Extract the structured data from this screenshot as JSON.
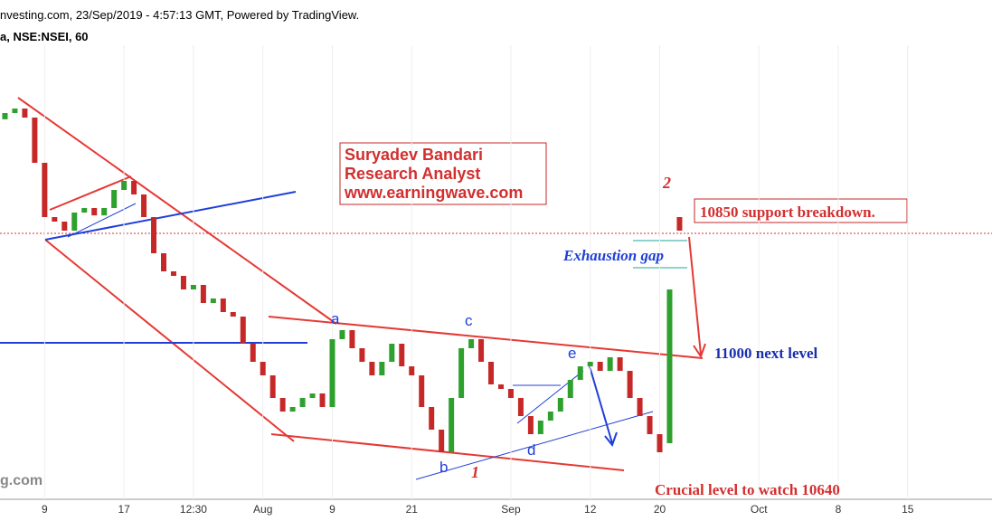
{
  "chart_data": {
    "type": "candlestick",
    "source": "nvesting.com, 23/Sep/2019 - 4:57:13 GMT, Powered by TradingView.",
    "title": "a, NSE:NSEI, 60",
    "watermark": "g.com",
    "categories": [
      null,
      null,
      null,
      null,
      "9",
      null,
      null,
      null,
      null,
      null,
      null,
      null,
      "17",
      null,
      null,
      null,
      null,
      null,
      null,
      "12:30",
      null,
      null,
      null,
      null,
      null,
      null,
      "Aug",
      null,
      null,
      null,
      null,
      null,
      null,
      "9",
      null,
      null,
      null,
      null,
      null,
      null,
      null,
      "21",
      null,
      null,
      null,
      null,
      null,
      null,
      null,
      null,
      null,
      "Sep",
      null,
      null,
      null,
      null,
      null,
      null,
      null,
      "12",
      null,
      null,
      null,
      null,
      null,
      null,
      "20",
      null,
      null,
      null,
      null,
      null,
      null,
      null,
      null,
      null,
      "Oct",
      null,
      null,
      null,
      null,
      null,
      null,
      null,
      "8",
      null,
      null,
      null,
      null,
      null,
      null,
      "15",
      null,
      null,
      null,
      null,
      null,
      null,
      null,
      null
    ],
    "open": [
      11930,
      11952,
      11968,
      11936,
      11776,
      11584,
      11568,
      11536,
      11600,
      11616,
      11590,
      11616,
      11680,
      11712,
      11664,
      11584,
      11456,
      11392,
      11376,
      11328,
      11344,
      11280,
      11296,
      11248,
      11232,
      11136,
      11072,
      11024,
      10944,
      10896,
      10912,
      10944,
      10960,
      10912,
      11152,
      11184,
      11120,
      11072,
      11024,
      11072,
      11136,
      11056,
      11024,
      10912,
      10832,
      10752,
      10944,
      11120,
      11152,
      11072,
      10992,
      10976,
      10944,
      10880,
      10816,
      10864,
      10896,
      10944,
      11008,
      11056,
      11072,
      11040,
      11088,
      11040,
      10944,
      10880,
      10816,
      10784,
      11584,
      null,
      null,
      null,
      null,
      null,
      null,
      null,
      null,
      null,
      null,
      null,
      null,
      null,
      null,
      null,
      null,
      null,
      null,
      null,
      null,
      null,
      null,
      null,
      null,
      null,
      null,
      null,
      null,
      null,
      null,
      null
    ],
    "close": [
      11952,
      11968,
      11936,
      11776,
      11584,
      11568,
      11536,
      11600,
      11616,
      11590,
      11616,
      11680,
      11712,
      11664,
      11584,
      11456,
      11392,
      11376,
      11328,
      11344,
      11280,
      11296,
      11248,
      11232,
      11136,
      11072,
      11024,
      10944,
      10896,
      10912,
      10944,
      10960,
      10912,
      11152,
      11184,
      11120,
      11072,
      11024,
      11072,
      11136,
      11056,
      11024,
      10912,
      10832,
      10752,
      10944,
      11120,
      11152,
      11072,
      10992,
      10976,
      10944,
      10880,
      10816,
      10864,
      10896,
      10944,
      11008,
      11056,
      11072,
      11040,
      11088,
      11040,
      10944,
      10880,
      10816,
      10752,
      11328,
      11536,
      null,
      null,
      null,
      null,
      null,
      null,
      null,
      null,
      null,
      null,
      null,
      null,
      null,
      null,
      null,
      null,
      null,
      null,
      null,
      null,
      null,
      null,
      null,
      null,
      null,
      null,
      null,
      null,
      null,
      null,
      null
    ],
    "ylim": [
      10608,
      12160
    ],
    "colors": {
      "up": "#2ea02e",
      "down": "#c62828"
    },
    "grid": true,
    "annotations": {
      "box": [
        "Suryadev Bandari",
        "Research Analyst",
        "www.earningwave.com"
      ],
      "wave_2": "2",
      "breakdown": "10850 support breakdown.",
      "gap": "Exhaustion gap",
      "next_level": "11000 next level",
      "crucial": "Crucial level to watch 10640",
      "wave_a": "a",
      "wave_b": "b",
      "wave_c": "c",
      "wave_d": "d",
      "wave_e": "e",
      "wave_1": "1"
    }
  }
}
